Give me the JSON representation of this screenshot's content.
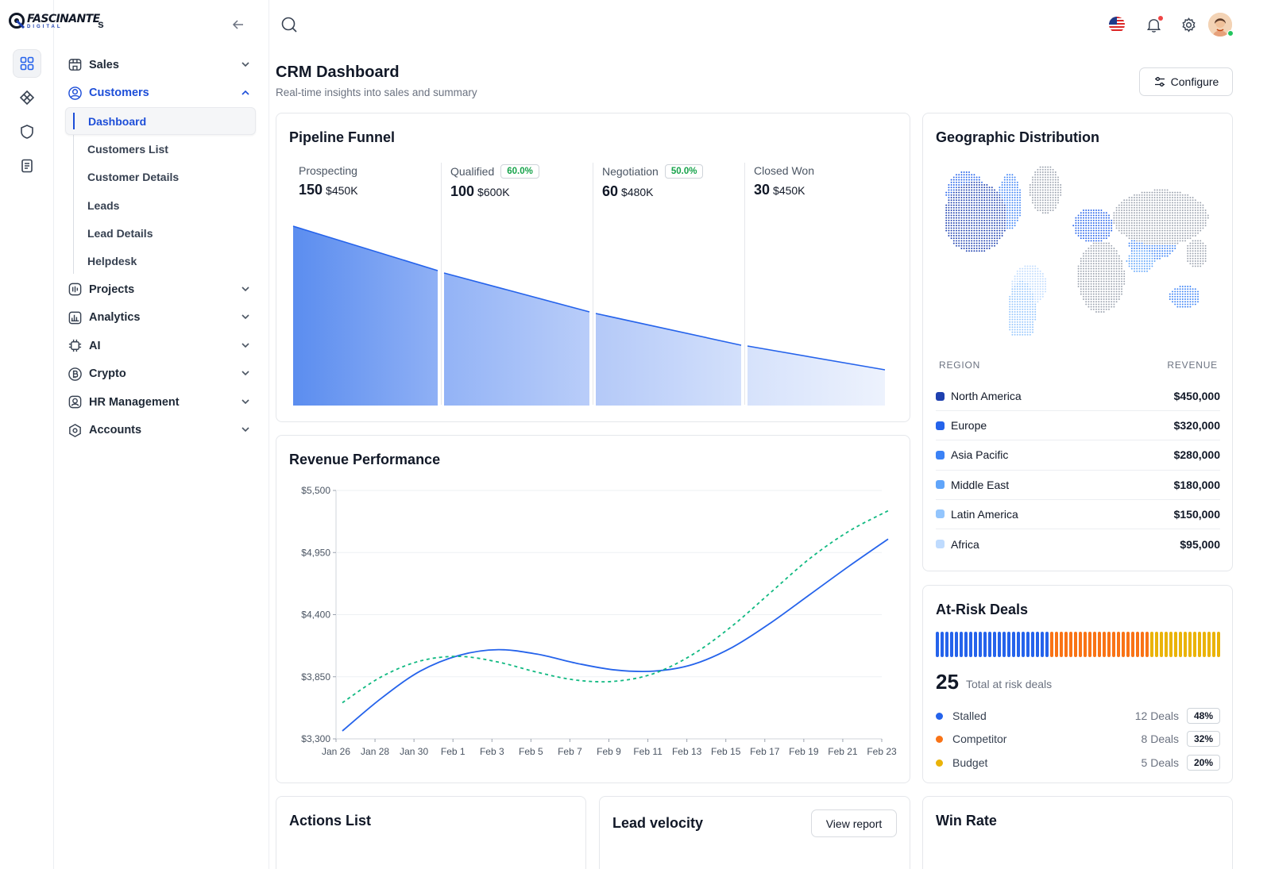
{
  "brand": {
    "name": "FASCINANTE",
    "sub": "DIGITAL",
    "suffix": "s"
  },
  "sidebar": {
    "items": [
      {
        "label": "Sales",
        "icon": "storefront-icon"
      },
      {
        "label": "Customers",
        "icon": "user-circle-icon",
        "open": true,
        "children": [
          "Dashboard",
          "Customers List",
          "Customer Details",
          "Leads",
          "Lead Details",
          "Helpdesk"
        ]
      },
      {
        "label": "Projects",
        "icon": "projects-icon"
      },
      {
        "label": "Analytics",
        "icon": "bar-chart-icon"
      },
      {
        "label": "AI",
        "icon": "chip-icon"
      },
      {
        "label": "Crypto",
        "icon": "bitcoin-icon"
      },
      {
        "label": "HR Management",
        "icon": "id-badge-icon"
      },
      {
        "label": "Accounts",
        "icon": "hexagon-icon"
      }
    ],
    "active_child": "Dashboard"
  },
  "header": {
    "title": "CRM Dashboard",
    "subtitle": "Real-time insights into sales and summary",
    "configure_label": "Configure"
  },
  "pipeline": {
    "title": "Pipeline Funnel",
    "stages": [
      {
        "name": "Prospecting",
        "count": "150",
        "amount": "$450K",
        "badge": ""
      },
      {
        "name": "Qualified",
        "count": "100",
        "amount": "$600K",
        "badge": "60.0%"
      },
      {
        "name": "Negotiation",
        "count": "60",
        "amount": "$480K",
        "badge": "50.0%"
      },
      {
        "name": "Closed Won",
        "count": "30",
        "amount": "$450K",
        "badge": ""
      }
    ]
  },
  "geo": {
    "title": "Geographic Distribution",
    "col_region": "REGION",
    "col_revenue": "REVENUE",
    "rows": [
      {
        "region": "North America",
        "revenue": "$450,000",
        "color": "#1e40af"
      },
      {
        "region": "Europe",
        "revenue": "$320,000",
        "color": "#2563eb"
      },
      {
        "region": "Asia Pacific",
        "revenue": "$280,000",
        "color": "#3b82f6"
      },
      {
        "region": "Middle East",
        "revenue": "$180,000",
        "color": "#60a5fa"
      },
      {
        "region": "Latin America",
        "revenue": "$150,000",
        "color": "#93c5fd"
      },
      {
        "region": "Africa",
        "revenue": "$95,000",
        "color": "#bfdbfe"
      }
    ]
  },
  "revenue": {
    "title": "Revenue Performance"
  },
  "chart_data": {
    "type": "line",
    "title": "Revenue Performance",
    "x": [
      "Jan 26",
      "Jan 28",
      "Jan 30",
      "Feb 1",
      "Feb 3",
      "Feb 5",
      "Feb 7",
      "Feb 9",
      "Feb 11",
      "Feb 13",
      "Feb 15",
      "Feb 17",
      "Feb 19",
      "Feb 21",
      "Feb 23"
    ],
    "yticks": [
      "$5,500",
      "$4,950",
      "$4,400",
      "$3,850",
      "$3,300"
    ],
    "ylim": [
      3300,
      5500
    ],
    "series": [
      {
        "values": [
          3370,
          3660,
          3900,
          4040,
          4090,
          4050,
          3970,
          3910,
          3900,
          3960,
          4110,
          4330,
          4580,
          4830,
          5070
        ],
        "color": "#2563eb",
        "style": "solid"
      },
      {
        "values": [
          3620,
          3850,
          3990,
          4030,
          3980,
          3890,
          3820,
          3810,
          3880,
          4050,
          4300,
          4600,
          4900,
          5140,
          5320
        ],
        "color": "#10b981",
        "style": "dashed"
      }
    ]
  },
  "risk": {
    "title": "At-Risk Deals",
    "total": "25",
    "total_label": "Total at risk deals",
    "rows": [
      {
        "label": "Stalled",
        "deals": "12 Deals",
        "pct": "48%",
        "color": "#2563eb"
      },
      {
        "label": "Competitor",
        "deals": "8 Deals",
        "pct": "32%",
        "color": "#f97316"
      },
      {
        "label": "Budget",
        "deals": "5 Deals",
        "pct": "20%",
        "color": "#eab308"
      }
    ]
  },
  "bottom": {
    "actions_title": "Actions List",
    "velocity_title": "Lead velocity",
    "view_report": "View report",
    "winrate_title": "Win Rate"
  }
}
